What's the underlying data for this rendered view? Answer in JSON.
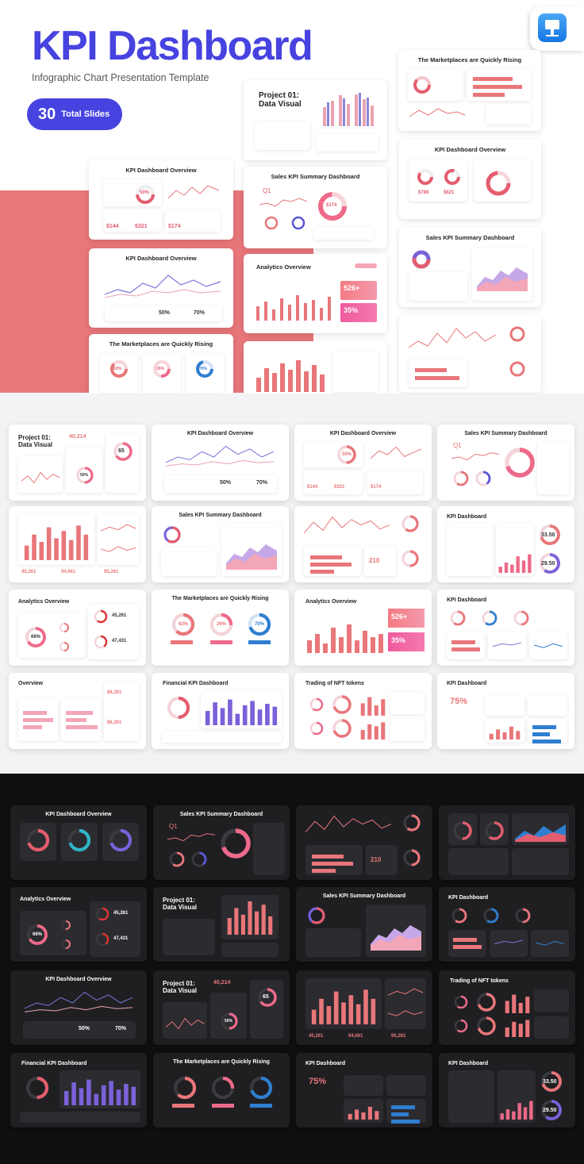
{
  "header": {
    "title": "KPI Dashboard",
    "subtitle": "Infographic Chart Presentation Template",
    "badge_number": "30",
    "badge_text": "Total Slides"
  },
  "app_icon": "keynote-icon",
  "colors": {
    "brand_blue": "#4743e0",
    "salmon": "#e8767a",
    "pink": "#ee6a8a",
    "purple": "#7b61d9",
    "dark_bg": "#101012"
  },
  "top": {
    "project": {
      "title_line1": "Project 01:",
      "title_line2": "Data Visual"
    },
    "overview1": {
      "title": "KPI Dashboard Overview",
      "pct": "50%",
      "v1": "$144",
      "v2": "$321",
      "v3": "$174"
    },
    "sales": {
      "title": "Sales KPI Summary Dashboard",
      "label": "Q1",
      "donut": "$174"
    },
    "marketplaces_top": {
      "title": "The Marketplaces are Quickly Rising"
    },
    "overview_right": {
      "title": "KPI Dashboard Overview",
      "v1": "$786",
      "v2": "$621"
    },
    "overview2": {
      "title": "KPI Dashboard Overview",
      "p1": "50%",
      "p2": "70%"
    },
    "analytics": {
      "title": "Analytics Overview",
      "v1": "526+",
      "v2": "35%"
    },
    "sales_right": {
      "title": "Sales KPI Summary Dashboard"
    },
    "marketplaces": {
      "title": "The Marketplaces are Quickly Rising",
      "p1": "62%",
      "p2": "26%",
      "p3": "70%"
    }
  },
  "light_grid": [
    {
      "title": "Project 01:",
      "title2": "Data Visual",
      "value": "40,214",
      "pct": "65",
      "pct2": "50%"
    },
    {
      "title": "KPI Dashboard Overview",
      "p1": "50%",
      "p2": "70%"
    },
    {
      "title": "KPI Dashboard Overview",
      "pct": "50%",
      "v1": "$144",
      "v2": "$321",
      "v3": "$174"
    },
    {
      "title": "Sales KPI Summary Dashboard",
      "label": "Q1"
    },
    {
      "title": "",
      "v1": "45,261",
      "v2": "94,661",
      "v3": "95,261"
    },
    {
      "title": "Sales KPI Summary Dashboard"
    },
    {
      "title": "",
      "v": "210"
    },
    {
      "title": "KPI Dashboard",
      "v1": "33.50",
      "v2": "29.50"
    },
    {
      "title": "Analytics Overview",
      "pct": "66%",
      "v1": "45,261",
      "v2": "47,431"
    },
    {
      "title": "The Marketplaces are Quickly Rising",
      "p1": "62%",
      "p2": "26%",
      "p3": "70%"
    },
    {
      "title": "Analytics Overview",
      "v1": "526+",
      "v2": "35%"
    },
    {
      "title": "KPI Dashboard"
    },
    {
      "title": "Overview",
      "v1": "$6,261",
      "v2": "$6,261"
    },
    {
      "title": "Financial KPI Dashboard"
    },
    {
      "title": "Trading of NFT tokens"
    },
    {
      "title": "KPI Dashboard",
      "pct": "75%"
    }
  ],
  "dark_grid": [
    {
      "title": "KPI Dashboard Overview"
    },
    {
      "title": "Sales KPI Summary Dashboard",
      "label": "Q1"
    },
    {
      "title": "",
      "v": "210"
    },
    {
      "title": ""
    },
    {
      "title": "Analytics Overview",
      "pct": "66%",
      "v1": "45,261",
      "v2": "47,431"
    },
    {
      "title": "Project 01:",
      "title2": "Data Visual"
    },
    {
      "title": "Sales KPI Summary Dashboard"
    },
    {
      "title": "KPI Dashboard"
    },
    {
      "title": "KPI Dashboard Overview",
      "p1": "50%",
      "p2": "70%"
    },
    {
      "title": "Project 01:",
      "title2": "Data Visual",
      "value": "40,214",
      "pct": "65",
      "pct2": "50%"
    },
    {
      "title": "",
      "v1": "45,261",
      "v2": "94,661",
      "v3": "95,261"
    },
    {
      "title": "Trading of NFT tokens"
    },
    {
      "title": "Financial KPI Dashboard"
    },
    {
      "title": "The Marketplaces are Quickly Rising"
    },
    {
      "title": "KPI Dashboard",
      "pct": "75%"
    },
    {
      "title": "KPI Dashboard",
      "v1": "33.50",
      "v2": "29.50"
    }
  ]
}
